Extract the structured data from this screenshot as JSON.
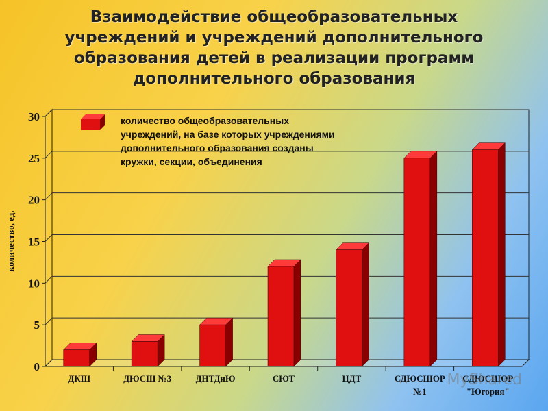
{
  "title_lines": [
    "Взаимодействие общеобразовательных",
    "учреждений и учреждений дополнительного",
    "образования детей в  реализации программ",
    "дополнительного образования"
  ],
  "watermark": "MyShared",
  "chart_data": {
    "type": "bar",
    "categories": [
      "ДКШ",
      "ДЮСШ №3",
      "ДНТДиЮ",
      "СЮТ",
      "ЦДТ",
      "СДЮСШОР №1",
      "СДЮСШОР \"Югория\""
    ],
    "category_lines": [
      [
        "ДКШ"
      ],
      [
        "ДЮСШ №3"
      ],
      [
        "ДНТДиЮ"
      ],
      [
        "СЮТ"
      ],
      [
        "ЦДТ"
      ],
      [
        "СДЮСШОР",
        "№1"
      ],
      [
        "СДЮСШОР",
        "\"Югория\""
      ]
    ],
    "series": [
      {
        "name": "количество общеобразовательных учреждений, на базе которых учреждениями дополнительного образования созданы кружки, секции, объединения",
        "values": [
          2,
          3,
          5,
          12,
          14,
          25,
          26
        ]
      }
    ],
    "legend_lines": [
      "количество общеобразовательных",
      "учреждений, на базе которых учреждениями",
      "дополнительного образования созданы",
      "кружки, секции, объединения"
    ],
    "ylabel": "количество, ед.",
    "ylim": [
      0,
      30
    ],
    "yticks": [
      0,
      5,
      10,
      15,
      20,
      25,
      30
    ],
    "grid": true,
    "bar_color": "#e01010",
    "legend_position": "top-left"
  }
}
